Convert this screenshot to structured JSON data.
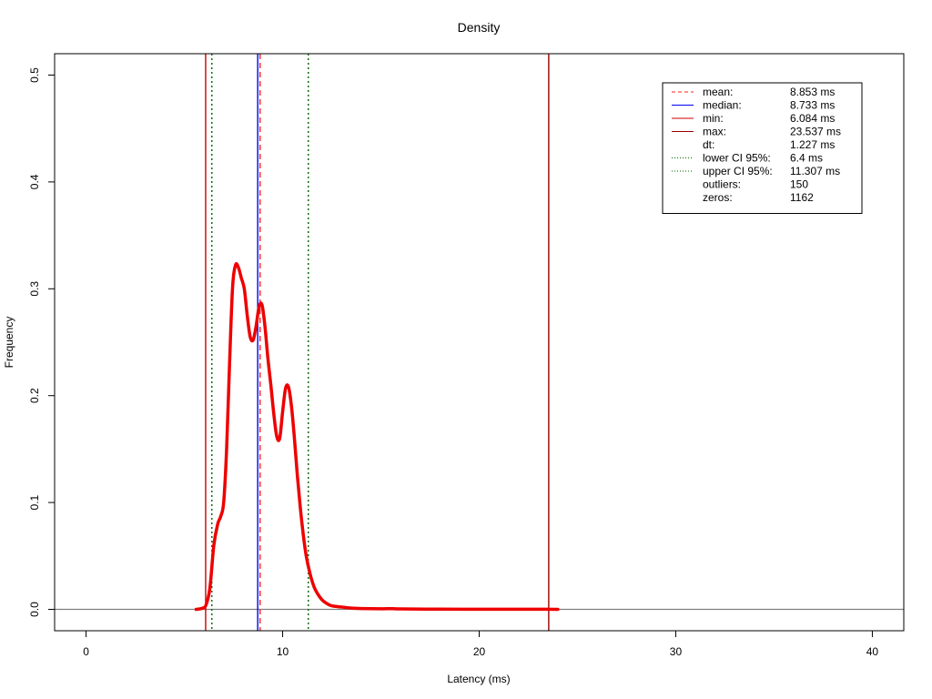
{
  "chart_data": {
    "type": "line",
    "title": "Density",
    "xlabel": "Latency (ms)",
    "ylabel": "Frequency",
    "xlim": [
      -1.6,
      41.6
    ],
    "ylim": [
      -0.02,
      0.52
    ],
    "x_ticks": [
      0,
      10,
      20,
      30,
      40
    ],
    "x_tick_labels": [
      "0",
      "10",
      "20",
      "30",
      "40"
    ],
    "y_ticks": [
      0.0,
      0.1,
      0.2,
      0.3,
      0.4,
      0.5
    ],
    "y_tick_labels": [
      "0.0",
      "0.1",
      "0.2",
      "0.3",
      "0.4",
      "0.5"
    ],
    "series": [
      {
        "color": "#ee0000",
        "x": [
          5.6,
          5.9,
          6.1,
          6.3,
          6.5,
          6.7,
          6.85,
          7.0,
          7.15,
          7.3,
          7.45,
          7.6,
          7.75,
          7.9,
          8.05,
          8.2,
          8.35,
          8.5,
          8.65,
          8.8,
          8.95,
          9.1,
          9.25,
          9.4,
          9.55,
          9.7,
          9.85,
          10.0,
          10.15,
          10.3,
          10.45,
          10.6,
          10.75,
          10.9,
          11.05,
          11.2,
          11.4,
          11.6,
          11.8,
          12.0,
          12.2,
          12.4,
          12.6,
          13.0,
          13.5,
          14.0,
          15.0,
          15.5,
          16.0,
          18.0,
          20.0,
          22.0,
          23.5,
          24.0
        ],
        "y": [
          0.0,
          0.001,
          0.004,
          0.02,
          0.06,
          0.08,
          0.087,
          0.1,
          0.15,
          0.23,
          0.3,
          0.322,
          0.32,
          0.31,
          0.3,
          0.275,
          0.255,
          0.252,
          0.265,
          0.283,
          0.285,
          0.265,
          0.235,
          0.21,
          0.183,
          0.162,
          0.16,
          0.185,
          0.207,
          0.208,
          0.19,
          0.16,
          0.125,
          0.095,
          0.07,
          0.05,
          0.033,
          0.021,
          0.014,
          0.009,
          0.006,
          0.004,
          0.003,
          0.0022,
          0.0012,
          0.0008,
          0.0005,
          0.0007,
          0.0004,
          0.0002,
          0.0001,
          0.0001,
          0.0001,
          0.0
        ]
      }
    ],
    "vlines": [
      {
        "key": "min",
        "x": 6.084,
        "color": "#cc0000",
        "dash": "solid"
      },
      {
        "key": "max",
        "x": 23.537,
        "color": "#990000",
        "dash": "solid"
      },
      {
        "key": "median",
        "x": 8.733,
        "color": "#0000ee",
        "dash": "solid"
      },
      {
        "key": "mean",
        "x": 8.853,
        "color": "#ff2020",
        "dash": "dashed"
      },
      {
        "key": "lower",
        "x": 6.4,
        "color": "#006400",
        "dash": "dotted"
      },
      {
        "key": "upper",
        "x": 11.307,
        "color": "#006400",
        "dash": "dotted"
      }
    ],
    "hline": {
      "y": 0,
      "color": "#808080"
    },
    "legend": {
      "position": "top-right",
      "entries": [
        {
          "label": "mean:",
          "value": "8.853 ms",
          "color": "#ff2020",
          "dash": "dashed"
        },
        {
          "label": "median:",
          "value": "8.733 ms",
          "color": "#0000ee",
          "dash": "solid"
        },
        {
          "label": "min:",
          "value": "6.084 ms",
          "color": "#cc0000",
          "dash": "solid"
        },
        {
          "label": "max:",
          "value": "23.537 ms",
          "color": "#990000",
          "dash": "solid"
        },
        {
          "label": "dt:",
          "value": "1.227 ms",
          "color": "",
          "dash": "none"
        },
        {
          "label": "lower CI 95%:",
          "value": "6.4 ms",
          "color": "#006400",
          "dash": "dotted"
        },
        {
          "label": "upper CI 95%:",
          "value": "11.307 ms",
          "color": "#006400",
          "dash": "dotted"
        },
        {
          "label": "outliers:",
          "value": "150",
          "color": "",
          "dash": "none"
        },
        {
          "label": "zeros:",
          "value": "1162",
          "color": "",
          "dash": "none"
        }
      ]
    }
  }
}
